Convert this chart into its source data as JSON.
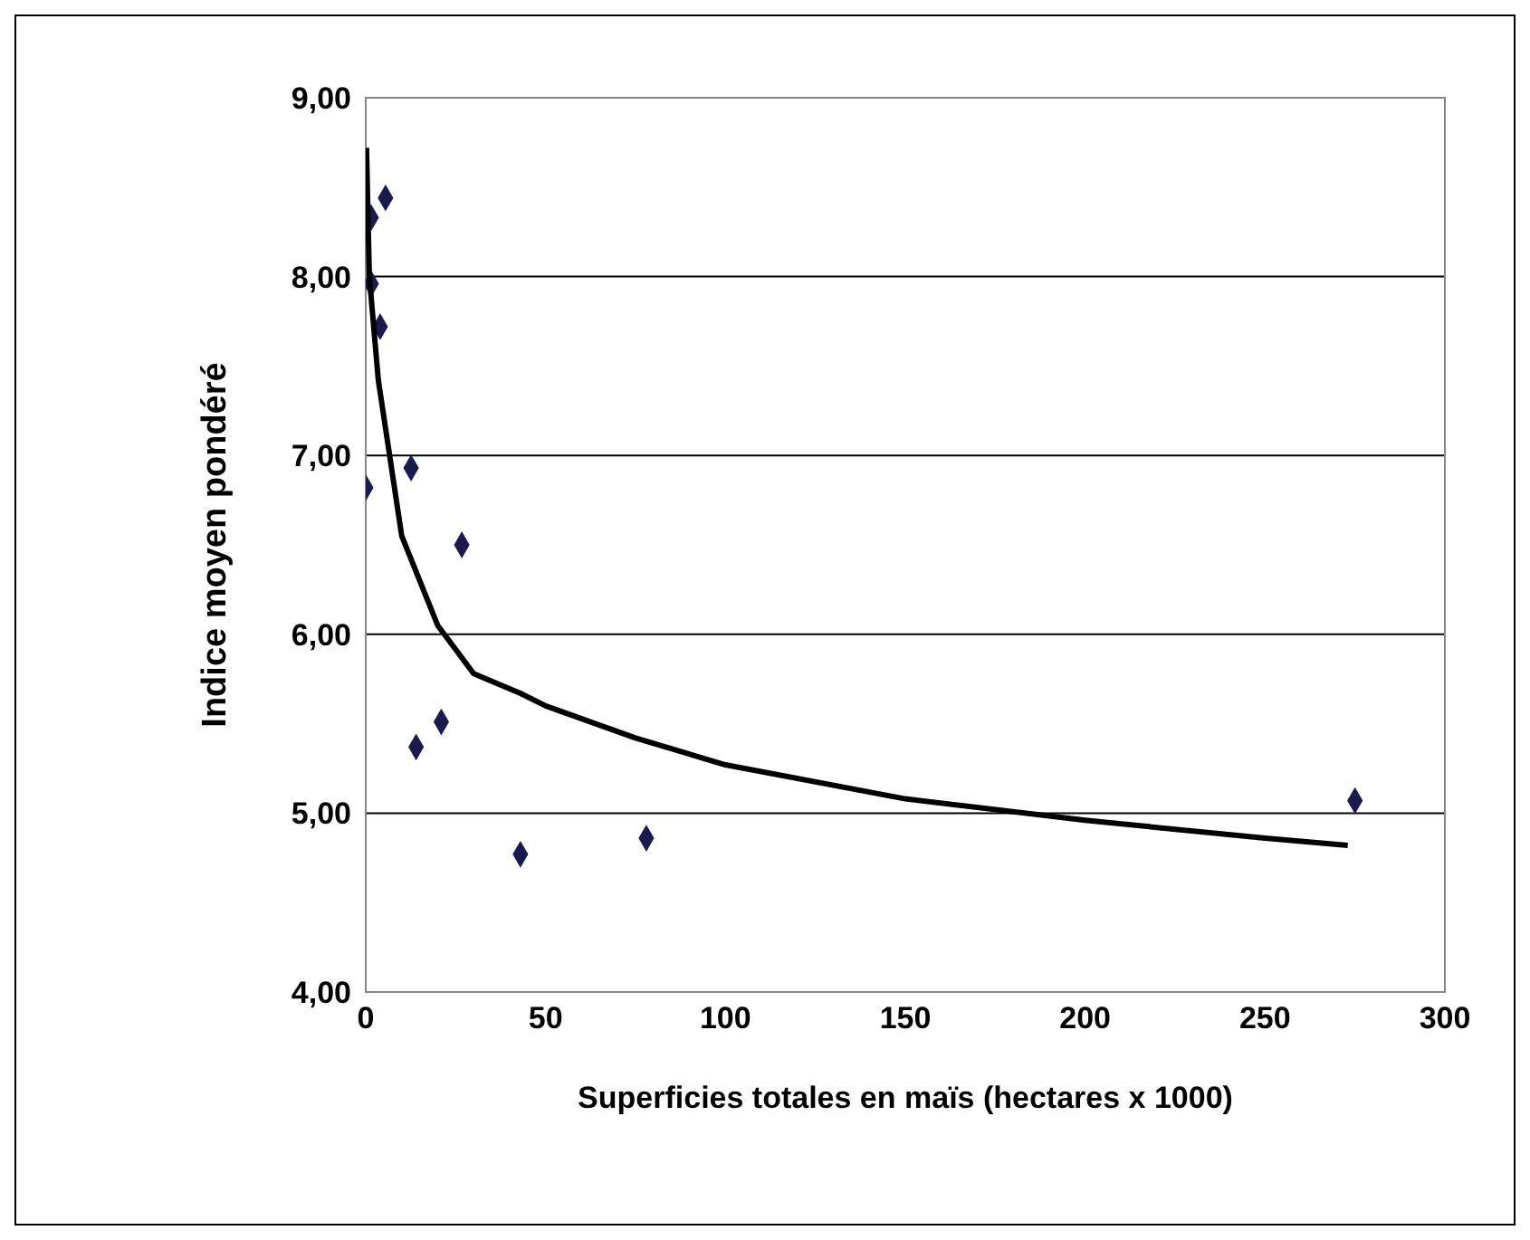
{
  "chart_data": {
    "type": "scatter",
    "xlabel": "Superficies totales en maïs (hectares x 1000)",
    "ylabel": "Indice moyen pondéré",
    "xlim": [
      0,
      300
    ],
    "xticks": [
      0,
      50,
      100,
      150,
      200,
      250,
      300
    ],
    "ylim": [
      4,
      9
    ],
    "yticks": [
      {
        "value": 4,
        "label": "4,00"
      },
      {
        "value": 5,
        "label": "5,00"
      },
      {
        "value": 6,
        "label": "6,00"
      },
      {
        "value": 7,
        "label": "7,00"
      },
      {
        "value": 8,
        "label": "8,00"
      },
      {
        "value": 9,
        "label": "9,00"
      }
    ],
    "grid": "y",
    "series": [
      {
        "color": "#1a1a4e",
        "marker": "diamond",
        "x": [
          0,
          1.5,
          1.5,
          5.5,
          4,
          12.6,
          26.7,
          14,
          21,
          43,
          78,
          275
        ],
        "values": [
          6.82,
          8.33,
          7.96,
          8.44,
          7.72,
          6.93,
          6.5,
          5.37,
          5.51,
          4.77,
          4.86,
          5.07
        ]
      },
      {
        "type": "line",
        "color": "#000000",
        "marker": "none",
        "x": [
          0.2,
          1,
          3.5,
          10,
          20,
          30,
          43,
          50,
          75,
          100,
          150,
          200,
          250,
          273
        ],
        "values": [
          8.72,
          8.0,
          7.42,
          6.55,
          6.05,
          5.78,
          5.67,
          5.6,
          5.42,
          5.27,
          5.08,
          4.96,
          4.86,
          4.82
        ]
      }
    ]
  }
}
